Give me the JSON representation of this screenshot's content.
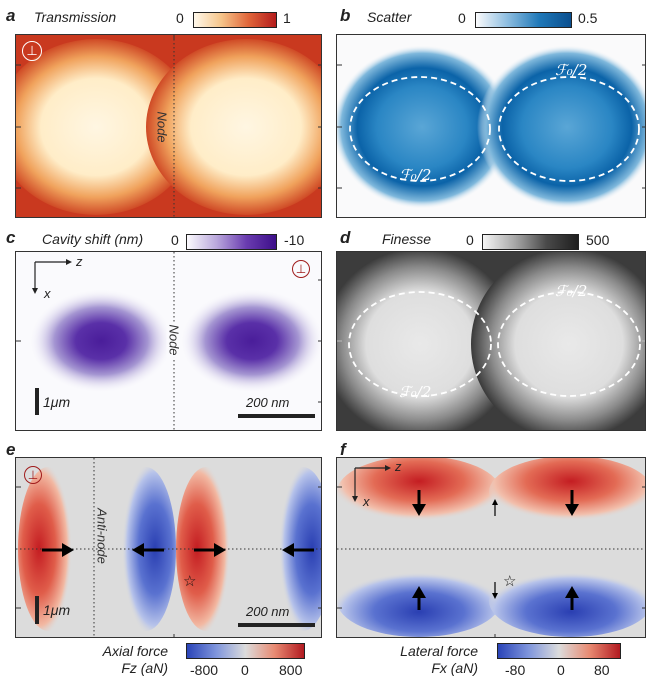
{
  "panels": {
    "a": {
      "letter": "a",
      "title": "Transmission",
      "cb_min": "0",
      "cb_max": "1",
      "node_label": "Node",
      "polarization_symbol": "⊥"
    },
    "b": {
      "letter": "b",
      "title": "Scatter",
      "cb_min": "0",
      "cb_max": "0.5",
      "contour_label_1": "ℱ₀/2",
      "contour_label_2": "ℱ₀/2"
    },
    "c": {
      "letter": "c",
      "title": "Cavity shift (nm)",
      "cb_min": "0",
      "cb_max": "-10",
      "node_label": "Node",
      "axis_z": "z",
      "axis_x": "x",
      "scale_vertical": "1μm",
      "scale_horizontal": "200 nm",
      "polarization_symbol": "⊥"
    },
    "d": {
      "letter": "d",
      "title": "Finesse",
      "cb_min": "0",
      "cb_max": "500",
      "contour_label_1": "ℱ₀/2",
      "contour_label_2": "ℱ₀/2"
    },
    "e": {
      "letter": "e",
      "antinode_label": "Anti-node",
      "scale_vertical": "1μm",
      "scale_horizontal": "200 nm",
      "caption_line1": "Axial force",
      "caption_line2": "Fz (aN)",
      "cb_ticks": [
        "-800",
        "0",
        "800"
      ],
      "polarization_symbol": "⊥",
      "star": "☆"
    },
    "f": {
      "letter": "f",
      "axis_z": "z",
      "axis_x": "x",
      "caption_line1": "Lateral force",
      "caption_line2": "Fx (aN)",
      "cb_ticks": [
        "-80",
        "0",
        "80"
      ],
      "star": "☆"
    }
  },
  "colors": {
    "transmission_high": "#fff4dc",
    "transmission_low": "#c0321c",
    "scatter_high": "#0a62a8",
    "shift_high": "#4b1a9a",
    "finesse_high": "#3a3a3a",
    "force_pos": "#c7242c",
    "force_neg": "#2a44b8",
    "neutral": "#dcdcdc"
  }
}
